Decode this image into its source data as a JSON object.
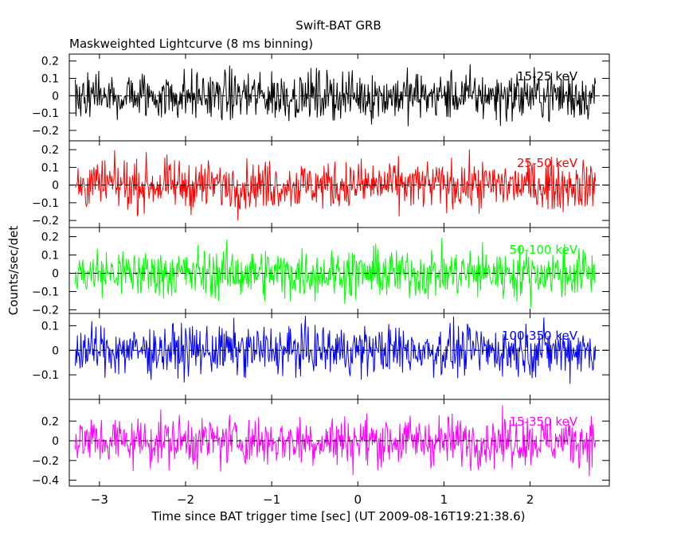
{
  "title": "Swift-BAT GRB",
  "subtitle": "Maskweighted Lightcurve (8 ms binning)",
  "chart_data": {
    "type": "line",
    "title": "Swift-BAT GRB",
    "subtitle": "Maskweighted Lightcurve (8 ms binning)",
    "xlabel": "Time since BAT trigger time [sec] (UT 2009-08-16T19:21:38.6)",
    "ylabel": "Counts/sec/det",
    "xlim": [
      -3.35,
      2.92
    ],
    "x_ticks": [
      -3,
      -2,
      -1,
      0,
      1,
      2
    ],
    "data_x_range": [
      -3.28,
      2.76
    ],
    "bin_width_s": 0.008,
    "grid": false,
    "reference_line": {
      "y": 0,
      "style": "dashed"
    },
    "panels": [
      {
        "name": "15-25 keV",
        "color": "#000000",
        "ylim": [
          -0.26,
          0.24
        ],
        "y_ticks": [
          0.2,
          0.1,
          0,
          -0.1,
          -0.2
        ],
        "y_tick_labels": [
          "0.2",
          "0.1",
          "0",
          "−0.1",
          "−0.2"
        ],
        "approx_range": [
          -0.22,
          0.22
        ]
      },
      {
        "name": "25-50 keV",
        "color": "#ff0000",
        "ylim": [
          -0.24,
          0.25
        ],
        "y_ticks": [
          0.2,
          0.1,
          0,
          -0.1,
          -0.2
        ],
        "y_tick_labels": [
          "0.2",
          "0.1",
          "0",
          "−0.1",
          "−0.2"
        ],
        "approx_range": [
          -0.2,
          0.22
        ]
      },
      {
        "name": "50-100 keV",
        "color": "#00ff00",
        "ylim": [
          -0.22,
          0.25
        ],
        "y_ticks": [
          0.2,
          0.1,
          0,
          -0.1,
          -0.2
        ],
        "y_tick_labels": [
          "0.2",
          "0.1",
          "0",
          "−0.1",
          "−0.2"
        ],
        "approx_range": [
          -0.2,
          0.22
        ]
      },
      {
        "name": "100-350 keV",
        "color": "#0000ff",
        "ylim": [
          -0.2,
          0.15
        ],
        "y_ticks": [
          0.1,
          0,
          -0.1
        ],
        "y_tick_labels": [
          "0.1",
          "0",
          "−0.1"
        ],
        "approx_range": [
          -0.17,
          0.14
        ]
      },
      {
        "name": "15-350 keV",
        "color": "#ff00ff",
        "ylim": [
          -0.46,
          0.42
        ],
        "y_ticks": [
          0.2,
          0,
          -0.2,
          -0.4
        ],
        "y_tick_labels": [
          "0.2",
          "0",
          "−0.2",
          "−0.4"
        ],
        "approx_range": [
          -0.42,
          0.36
        ]
      }
    ]
  }
}
